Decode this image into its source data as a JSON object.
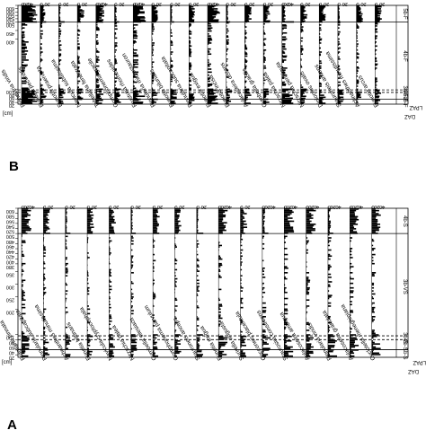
{
  "chart_data": [
    {
      "type": "bar",
      "panel": "B",
      "orientation": "stratigraphic (depth on y-axis, abundance % on x-axis, figure rotated 180°)",
      "ylabel": "[cm]",
      "depth_ticks": [
        20,
        40,
        60,
        80,
        100,
        400,
        450,
        500,
        520,
        540,
        560,
        580,
        600
      ],
      "zone_header_1": "DAZ",
      "zone_header_2": "LPAZ",
      "zones": [
        {
          "label": "1b-F",
          "top": 10,
          "bottom": 40
        },
        {
          "label": "2b-F",
          "top": 40,
          "bottom": 80
        },
        {
          "label": "3b-F",
          "top": 80,
          "bottom": 95
        },
        {
          "label": "4b-F",
          "top": 95,
          "bottom": 500
        },
        {
          "label": "5b-F",
          "top": 500,
          "bottom": 600
        }
      ],
      "zone_boundaries": [
        {
          "depth": 40,
          "style": "solid"
        },
        {
          "depth": 80,
          "style": "dashed"
        },
        {
          "depth": 95,
          "style": "dashed"
        },
        {
          "depth": 500,
          "style": "solid"
        }
      ],
      "series": [
        {
          "name": "Pinnularia viridis",
          "max": 80
        },
        {
          "name": "Eunotia pectinalis",
          "max": 20
        },
        {
          "name": "Eunotia praerupta",
          "max": 20
        },
        {
          "name": "Navicula subtilissima",
          "max": 20
        },
        {
          "name": "Tabellaria fenestrata",
          "max": 40
        },
        {
          "name": "Gomphonema gracile",
          "max": 20
        },
        {
          "name": "Frustulia rhomboides",
          "max": 60
        },
        {
          "name": "Pinnularia microstauron",
          "max": 20
        },
        {
          "name": "Eunotia bilunaris",
          "max": 20
        },
        {
          "name": "Pinnularia subcapitata",
          "max": 20
        },
        {
          "name": "Eunotia exigua",
          "max": 60
        },
        {
          "name": "Eunotia incisa",
          "max": 20
        },
        {
          "name": "Aulacoseira distans",
          "max": 20
        },
        {
          "name": "Cymbella gracilis",
          "max": 20
        },
        {
          "name": "Nitzschia palea",
          "max": 60
        },
        {
          "name": "Nitzschia perminuta",
          "max": 20
        },
        {
          "name": "Diploneis ovalis",
          "max": 20
        },
        {
          "name": "Stauroneis anceps",
          "max": 20
        },
        {
          "name": "Achnanthes minutissima",
          "max": 20
        },
        {
          "name": "Eunotia arcus",
          "max": 20
        }
      ]
    },
    {
      "type": "bar",
      "panel": "A",
      "orientation": "stratigraphic (depth on y-axis, abundance % on x-axis, figure rotated 180°)",
      "ylabel": "[cm]",
      "depth_ticks": [
        20,
        40,
        60,
        80,
        100,
        200,
        250,
        300,
        350,
        380,
        400,
        420,
        440,
        460,
        480,
        500,
        520,
        540,
        560,
        580,
        600
      ],
      "zone_header_1": "DAZ",
      "zone_header_2": "LPAZ",
      "zones": [
        {
          "label": "1b-S",
          "top": 10,
          "bottom": 40
        },
        {
          "label": "2b-S",
          "top": 40,
          "bottom": 80
        },
        {
          "label": "3b-S",
          "top": 80,
          "bottom": 95
        },
        {
          "label": "3b-VS",
          "top": 95,
          "bottom": 500
        },
        {
          "label": "4b-S",
          "top": 500,
          "bottom": 600
        }
      ],
      "zone_boundaries": [
        {
          "depth": 40,
          "style": "solid"
        },
        {
          "depth": 80,
          "style": "dashed"
        },
        {
          "depth": 95,
          "style": "dashed"
        },
        {
          "depth": 500,
          "style": "solid"
        }
      ],
      "series": [
        {
          "name": "Fragilaria pinnata",
          "max": 40
        },
        {
          "name": "Pinnularia subcapitata",
          "max": 20
        },
        {
          "name": "Achnanthes minutissima",
          "max": 20
        },
        {
          "name": "Eunotia bilunaris",
          "max": 20
        },
        {
          "name": "Navicula cryptocephala",
          "max": 20
        },
        {
          "name": "Nitzschia palea",
          "max": 20
        },
        {
          "name": "Cymbella silesiaca",
          "max": 20
        },
        {
          "name": "Gomphonema parvulum",
          "max": 20
        },
        {
          "name": "Stauroneis anceps",
          "max": 20
        },
        {
          "name": "Eunotia exigua",
          "max": 40
        },
        {
          "name": "Surirella angusta",
          "max": 20
        },
        {
          "name": "Cocconeis placentula",
          "max": 40
        },
        {
          "name": "Staurosira construens",
          "max": 40
        },
        {
          "name": "Aulacoseira ambigua",
          "max": 40
        },
        {
          "name": "Pinnularia viridis",
          "max": 40
        },
        {
          "name": "Aulacoseira granulata",
          "max": 40
        },
        {
          "name": "Cyclotella meneghiniana",
          "max": 40
        }
      ]
    }
  ],
  "panel_b": {
    "letter": "B",
    "depth_label": "[cm]",
    "daz": "DAZ",
    "lpaz": "LPAZ"
  },
  "panel_a": {
    "letter": "A",
    "depth_label": "[cm]",
    "daz": "DAZ",
    "lpaz": "LPAZ"
  },
  "colors": {
    "bars": "#000000",
    "lines": "#000000",
    "background": "#ffffff"
  }
}
